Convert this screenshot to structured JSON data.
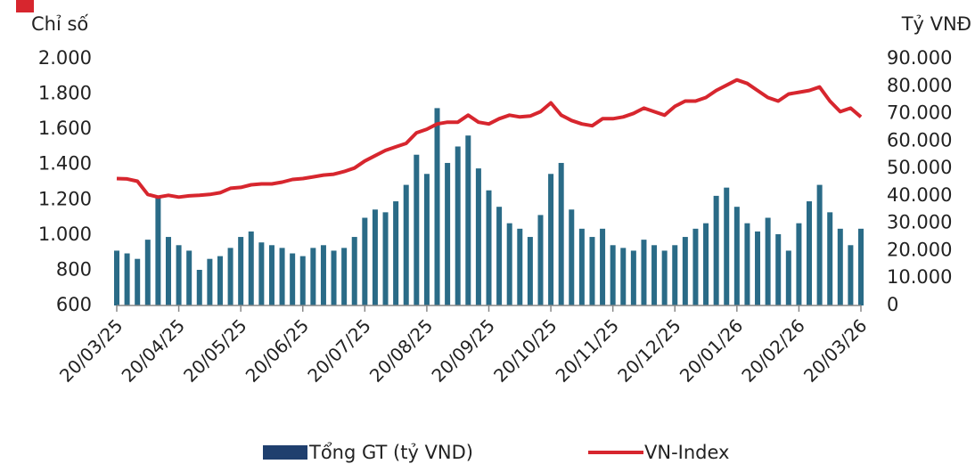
{
  "chart_data": {
    "type": "bar-line",
    "y_label": "Chỉ số",
    "y2_label": "Tỷ VNĐ",
    "categories": [
      "20/03/25",
      null,
      null,
      null,
      null,
      null,
      "20/04/25",
      null,
      null,
      null,
      null,
      null,
      "20/05/25",
      null,
      null,
      null,
      null,
      null,
      "20/06/25",
      null,
      null,
      null,
      null,
      null,
      "20/07/25",
      null,
      null,
      null,
      null,
      null,
      "20/08/25",
      null,
      null,
      null,
      null,
      null,
      "20/09/25",
      null,
      null,
      null,
      null,
      null,
      "20/10/25",
      null,
      null,
      null,
      null,
      null,
      "20/11/25",
      null,
      null,
      null,
      null,
      null,
      "20/12/25",
      null,
      null,
      null,
      null,
      null,
      "20/01/26",
      null,
      null,
      null,
      null,
      null,
      "20/02/26",
      null,
      null,
      null,
      null,
      null,
      "20/03/26"
    ],
    "series": [
      {
        "name": "Tổng GT (tỷ VND)",
        "type": "bar",
        "axis": "y2",
        "color": "#2a6b87",
        "legend_color": "#1f3f6e",
        "values": [
          20000,
          19000,
          17000,
          24000,
          40000,
          25000,
          22000,
          20000,
          13000,
          17000,
          18000,
          21000,
          25000,
          27000,
          23000,
          22000,
          21000,
          19000,
          18000,
          21000,
          22000,
          20000,
          21000,
          25000,
          32000,
          35000,
          34000,
          38000,
          44000,
          55000,
          48000,
          72000,
          52000,
          58000,
          62000,
          50000,
          42000,
          36000,
          30000,
          28000,
          25000,
          33000,
          48000,
          52000,
          35000,
          28000,
          25000,
          28000,
          22000,
          21000,
          20000,
          24000,
          22000,
          20000,
          22000,
          25000,
          28000,
          30000,
          40000,
          43000,
          36000,
          30000,
          27000,
          32000,
          26000,
          20000,
          30000,
          38000,
          44000,
          34000,
          28000,
          22000,
          28000
        ]
      },
      {
        "name": "VN-Index",
        "type": "line",
        "axis": "y",
        "color": "#d7262e",
        "values": [
          1320,
          1318,
          1305,
          1230,
          1215,
          1225,
          1215,
          1222,
          1225,
          1230,
          1240,
          1265,
          1270,
          1285,
          1290,
          1290,
          1300,
          1315,
          1320,
          1330,
          1340,
          1345,
          1360,
          1380,
          1420,
          1450,
          1480,
          1500,
          1520,
          1580,
          1600,
          1630,
          1640,
          1640,
          1680,
          1640,
          1630,
          1660,
          1680,
          1670,
          1675,
          1700,
          1750,
          1680,
          1650,
          1630,
          1620,
          1660,
          1660,
          1670,
          1690,
          1720,
          1700,
          1680,
          1730,
          1760,
          1760,
          1780,
          1820,
          1850,
          1880,
          1860,
          1820,
          1780,
          1760,
          1800,
          1810,
          1820,
          1840,
          1760,
          1700,
          1720,
          1670
        ]
      }
    ],
    "ylim": [
      600,
      2000
    ],
    "yticks": [
      600,
      800,
      {
        "value": 1000,
        "label": "1.000"
      },
      {
        "value": 1200,
        "label": "1.200"
      },
      {
        "value": 1400,
        "label": "1.400"
      },
      {
        "value": 1600,
        "label": "1.600"
      },
      {
        "value": 1800,
        "label": "1.800"
      },
      {
        "value": 2000,
        "label": "2.000"
      }
    ],
    "y2lim": [
      0,
      90000
    ],
    "y2ticks": [
      0,
      {
        "value": 10000,
        "label": "10.000"
      },
      {
        "value": 20000,
        "label": "20.000"
      },
      {
        "value": 30000,
        "label": "30.000"
      },
      {
        "value": 40000,
        "label": "40.000"
      },
      {
        "value": 50000,
        "label": "50.000"
      },
      {
        "value": 60000,
        "label": "60.000"
      },
      {
        "value": 70000,
        "label": "70.000"
      },
      {
        "value": 80000,
        "label": "80.000"
      },
      {
        "value": 90000,
        "label": "90.000"
      }
    ],
    "grid": false,
    "legend": "bottom"
  }
}
